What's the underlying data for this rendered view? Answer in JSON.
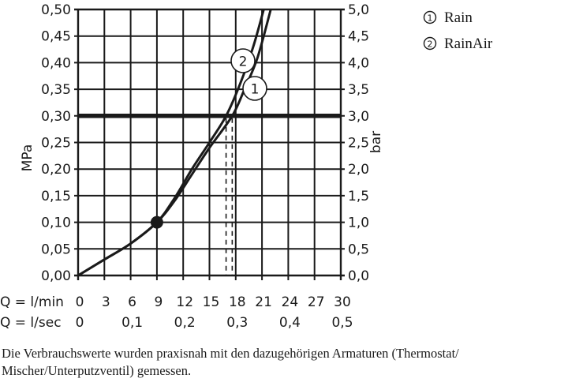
{
  "chart_data": {
    "type": "line",
    "title": "",
    "xlabel": "Q = l/min",
    "xlabel_secondary": "Q = l/sec",
    "ylabel": "MPa",
    "ylabel_secondary": "bar",
    "xlim": [
      0,
      30
    ],
    "ylim": [
      0,
      0.5
    ],
    "ylim_secondary": [
      0,
      5.0
    ],
    "grid": true,
    "x_ticks": [
      "0",
      "3",
      "6",
      "9",
      "12",
      "15",
      "18",
      "21",
      "24",
      "27",
      "30"
    ],
    "x_ticks_secondary": [
      "0",
      "0,1",
      "0,2",
      "0,3",
      "0,4",
      "0,5"
    ],
    "y_ticks": [
      "0,00",
      "0,05",
      "0,10",
      "0,15",
      "0,20",
      "0,25",
      "0,30",
      "0,35",
      "0,40",
      "0,45",
      "0,50"
    ],
    "y_ticks_secondary": [
      "0,0",
      "0,5",
      "1,0",
      "1,5",
      "2,0",
      "2,5",
      "3,0",
      "3,5",
      "4,0",
      "4,5",
      "5,0"
    ],
    "series": [
      {
        "name": "Rain",
        "marker": "1",
        "x": [
          0,
          3,
          6,
          9,
          11,
          13,
          15,
          17.6,
          19,
          20.5,
          22
        ],
        "y": [
          0,
          0.03,
          0.06,
          0.1,
          0.14,
          0.19,
          0.24,
          0.3,
          0.35,
          0.41,
          0.5
        ]
      },
      {
        "name": "RainAir",
        "marker": "2",
        "x": [
          0,
          3,
          6,
          9,
          11,
          13,
          15,
          16.9,
          18.5,
          20,
          21.2
        ],
        "y": [
          0,
          0.03,
          0.06,
          0.1,
          0.145,
          0.2,
          0.25,
          0.3,
          0.36,
          0.43,
          0.5
        ]
      }
    ],
    "annotations": [
      {
        "type": "hline",
        "y": 0.3,
        "label": "3,0 bar reference",
        "style": "thick"
      },
      {
        "type": "point",
        "x": 9,
        "y": 0.1,
        "label": "common point"
      },
      {
        "type": "vline-dashed",
        "x": 16.9,
        "from_y": 0,
        "to_y": 0.3,
        "series": "RainAir"
      },
      {
        "type": "vline-dashed",
        "x": 17.6,
        "from_y": 0,
        "to_y": 0.3,
        "series": "Rain"
      }
    ],
    "legend": {
      "position": "top-right",
      "entries": [
        "① Rain",
        "② RainAir"
      ]
    }
  },
  "axes": {
    "y_left_label": "MPa",
    "y_right_label": "bar",
    "x_row1_label": "Q = l/min",
    "x_row2_label": "Q = l/sec"
  },
  "legend": {
    "items": [
      {
        "marker": "1",
        "label": "Rain"
      },
      {
        "marker": "2",
        "label": "RainAir"
      }
    ]
  },
  "caption": {
    "line1": "Die Verbrauchswerte wurden praxisnah mit den dazugehörigen Armaturen (Thermostat/",
    "line2": "Mischer/Unterputzventil) gemessen."
  },
  "colors": {
    "ink": "#1a1a1a",
    "background": "#ffffff"
  }
}
